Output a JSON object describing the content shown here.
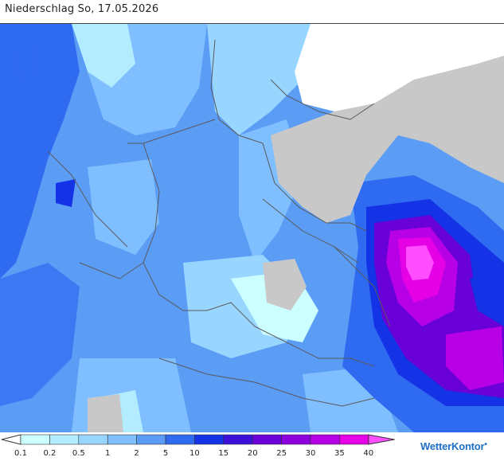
{
  "title": "Niederschlag So, 17.05.2026",
  "legend": {
    "colors": [
      "#ffffff",
      "#ccffff",
      "#b3ecff",
      "#99d6ff",
      "#80bfff",
      "#5b9cf5",
      "#2f6bf0",
      "#1432e6",
      "#3c10d8",
      "#6a00d8",
      "#8c00e0",
      "#b800e6",
      "#e600e6",
      "#ff4dff"
    ],
    "labels": [
      "0.1",
      "0.2",
      "0.5",
      "1",
      "2",
      "5",
      "10",
      "15",
      "20",
      "25",
      "30",
      "35",
      "40"
    ]
  },
  "logo": {
    "text": "WetterKontor",
    "drops": "💧"
  },
  "map_colors": {
    "land_nodata": "#c8c8c8",
    "sea_nodata": "#ffffff",
    "border": "#5a5a5a"
  }
}
